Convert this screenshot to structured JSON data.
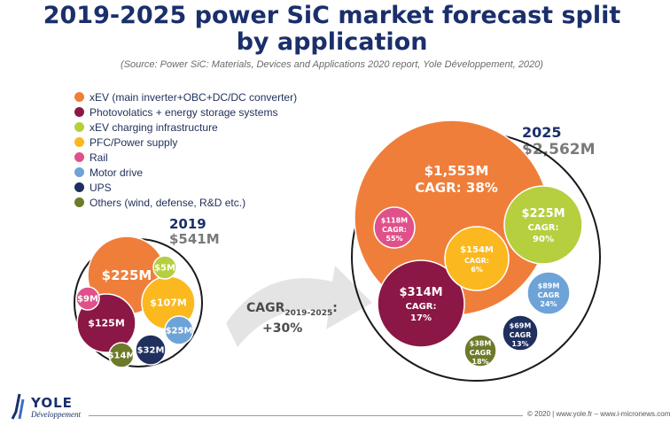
{
  "title_line1": "2019-2025 power SiC market forecast split",
  "title_line2": "by application",
  "source": "(Source: Power SiC: Materials, Devices and Applications 2020 report, Yole Développement, 2020)",
  "legend": [
    {
      "label": "xEV (main inverter+OBC+DC/DC converter)",
      "color": "#f07e3b"
    },
    {
      "label": "Photovolatics + energy storage systems",
      "color": "#8a1745"
    },
    {
      "label": "xEV charging infrastructure",
      "color": "#b5cf3f"
    },
    {
      "label": "PFC/Power supply",
      "color": "#fbb81f"
    },
    {
      "label": "Rail",
      "color": "#e0508a"
    },
    {
      "label": "Motor drive",
      "color": "#6ea3d8"
    },
    {
      "label": "UPS",
      "color": "#1f2f5e"
    },
    {
      "label": "Others (wind, defense, R&D etc.)",
      "color": "#6d7a2a"
    }
  ],
  "cagr_overall": {
    "label": "CAGR",
    "subscript": "2019-2025",
    "suffix": ":",
    "value": "+30%"
  },
  "chart_data": {
    "type": "bubble",
    "unit": "$M",
    "years": [
      {
        "year": "2019",
        "total_label": "$541M",
        "total": 541,
        "items": [
          {
            "segment": "xEV (main inverter+OBC+DC/DC converter)",
            "value": 225,
            "label": "$225M"
          },
          {
            "segment": "Photovolatics + energy storage systems",
            "value": 125,
            "label": "$125M"
          },
          {
            "segment": "PFC/Power supply",
            "value": 107,
            "label": "$107M"
          },
          {
            "segment": "UPS",
            "value": 32,
            "label": "$32M"
          },
          {
            "segment": "Motor drive",
            "value": 25,
            "label": "$25M"
          },
          {
            "segment": "Others (wind, defense, R&D etc.)",
            "value": 14,
            "label": "$14M"
          },
          {
            "segment": "Rail",
            "value": 9,
            "label": "$9M"
          },
          {
            "segment": "xEV charging infrastructure",
            "value": 5,
            "label": "$5M"
          }
        ]
      },
      {
        "year": "2025",
        "total_label": "$2,562M",
        "total": 2562,
        "items": [
          {
            "segment": "xEV (main inverter+OBC+DC/DC converter)",
            "value": 1553,
            "label": "$1,553M",
            "cagr": "CAGR: 38%"
          },
          {
            "segment": "Photovolatics + energy storage systems",
            "value": 314,
            "label": "$314M",
            "cagr_label": "CAGR:",
            "cagr_value": "17%"
          },
          {
            "segment": "xEV charging infrastructure",
            "value": 225,
            "label": "$225M",
            "cagr_label": "CAGR:",
            "cagr_value": "90%"
          },
          {
            "segment": "PFC/Power supply",
            "value": 154,
            "label": "$154M",
            "cagr_label": "CAGR:",
            "cagr_value": "6%"
          },
          {
            "segment": "Rail",
            "value": 118,
            "label": "$118M",
            "cagr_label": "CAGR:",
            "cagr_value": "55%"
          },
          {
            "segment": "Motor drive",
            "value": 89,
            "label": "$89M",
            "cagr_label": "CAGR",
            "cagr_value": "24%"
          },
          {
            "segment": "UPS",
            "value": 69,
            "label": "$69M",
            "cagr_label": "CAGR",
            "cagr_value": "13%"
          },
          {
            "segment": "Others (wind, defense, R&D etc.)",
            "value": 38,
            "label": "$38M",
            "cagr_label": "CAGR",
            "cagr_value": "18%"
          }
        ]
      }
    ]
  },
  "footer": {
    "logo": "YOLE",
    "logo_sub": "Développement",
    "right": "© 2020 | www.yole.fr – www.i-micronews.com"
  }
}
